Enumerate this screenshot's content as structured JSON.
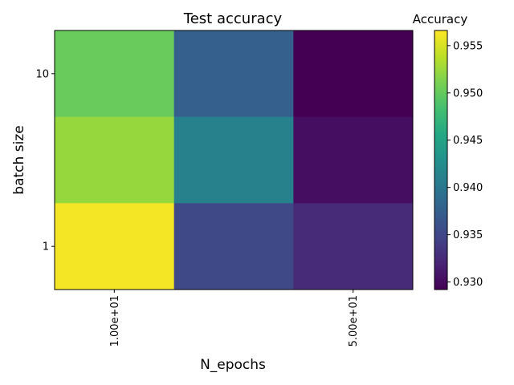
{
  "chart_data": {
    "type": "heatmap",
    "title": "Test accuracy",
    "xlabel": "N_epochs",
    "ylabel": "batch size",
    "x_tick_labels": [
      "1.00e+01",
      "5.00e+01"
    ],
    "y_tick_labels": [
      "10",
      "1"
    ],
    "rows": [
      {
        "label": "10",
        "values": [
          0.9502,
          0.9375,
          0.9292
        ]
      },
      {
        "label": "",
        "values": [
          0.9523,
          0.9412,
          0.9302
        ]
      },
      {
        "label": "1",
        "values": [
          0.9562,
          0.9352,
          0.9325
        ]
      }
    ],
    "colorbar": {
      "label": "Accuracy",
      "range": [
        0.9292,
        0.9566
      ],
      "tick_labels": [
        "0.930",
        "0.935",
        "0.940",
        "0.945",
        "0.950",
        "0.955"
      ],
      "ticks": [
        0.93,
        0.935,
        0.94,
        0.945,
        0.95,
        0.955
      ],
      "colormap": "viridis"
    },
    "grid": false
  }
}
